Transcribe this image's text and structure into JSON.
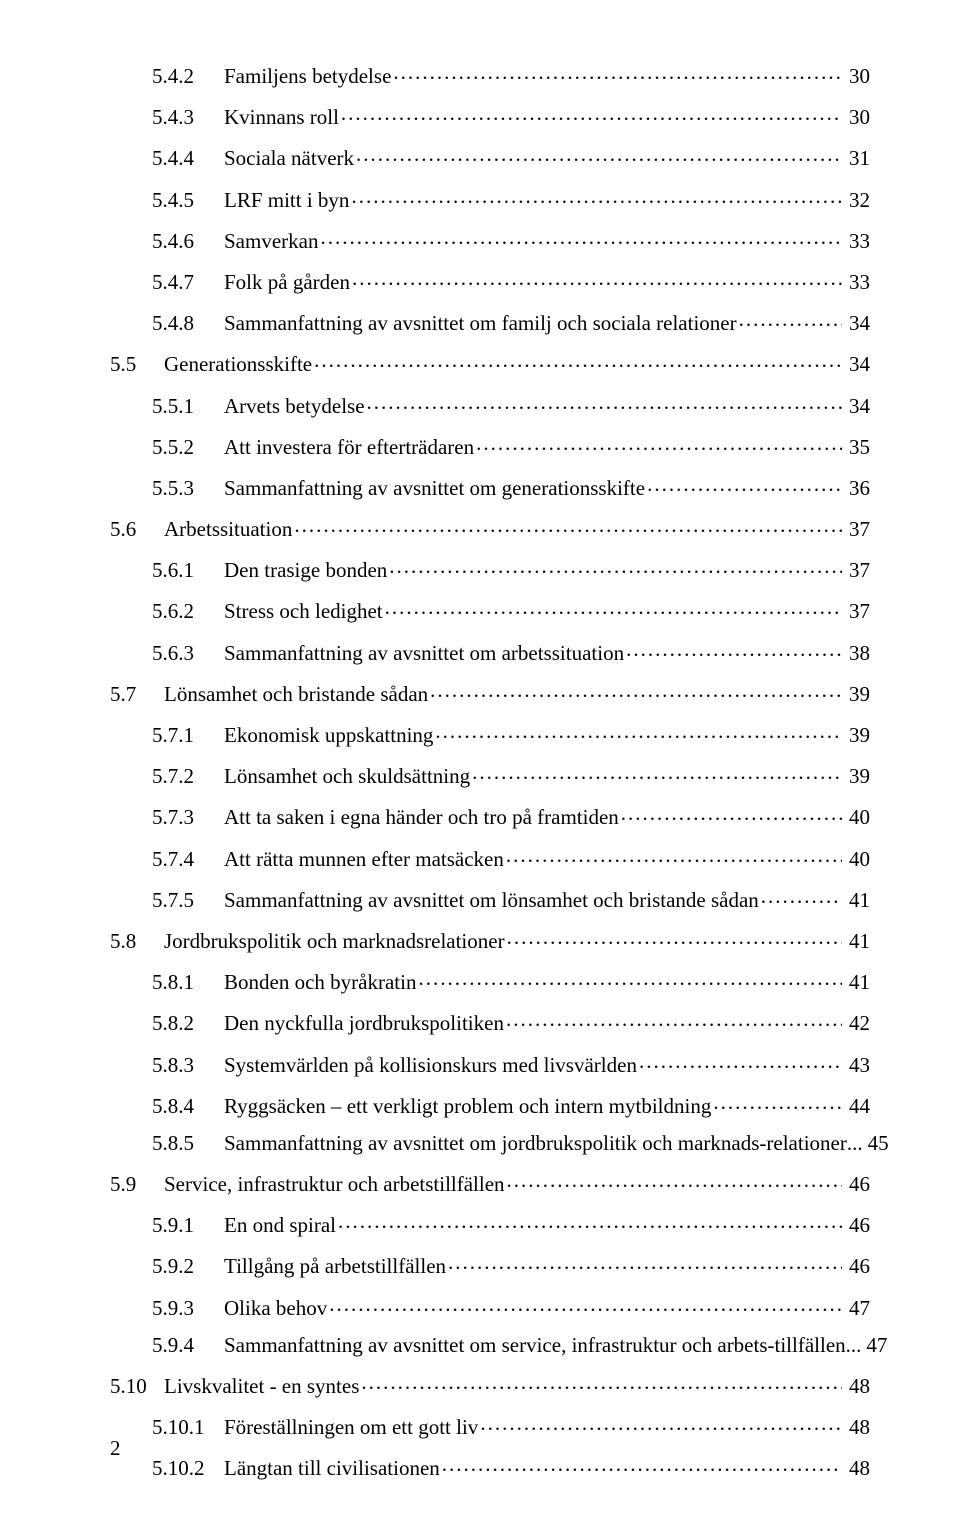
{
  "page_number": "2",
  "text_color": "#000000",
  "background_color": "#ffffff",
  "font_family": "Times New Roman",
  "font_size_pt": 16,
  "toc": [
    {
      "level": 2,
      "num": "5.4.2",
      "title": "Familjens betydelse",
      "suffix": "",
      "page": "30"
    },
    {
      "level": 2,
      "num": "5.4.3",
      "title": "Kvinnans roll",
      "suffix": "",
      "page": "30"
    },
    {
      "level": 2,
      "num": "5.4.4",
      "title": "Sociala nätverk",
      "suffix": "",
      "page": "31"
    },
    {
      "level": 2,
      "num": "5.4.5",
      "title": "LRF mitt i byn",
      "suffix": "",
      "page": "32"
    },
    {
      "level": 2,
      "num": "5.4.6",
      "title": "Samverkan",
      "suffix": "",
      "page": "33"
    },
    {
      "level": 2,
      "num": "5.4.7",
      "title": "Folk på gården",
      "suffix": "",
      "page": "33"
    },
    {
      "level": 2,
      "num": "5.4.8",
      "title": "Sammanfattning av avsnittet om familj och sociala relationer",
      "suffix": "",
      "page": "34"
    },
    {
      "level": 1,
      "num": "5.5",
      "title": "Generationsskifte",
      "suffix": "",
      "page": "34"
    },
    {
      "level": 2,
      "num": "5.5.1",
      "title": "Arvets betydelse",
      "suffix": "",
      "page": "34"
    },
    {
      "level": 2,
      "num": "5.5.2",
      "title": "Att investera för efterträdaren",
      "suffix": "",
      "page": "35"
    },
    {
      "level": 2,
      "num": "5.5.3",
      "title": "Sammanfattning av avsnittet om generationsskifte",
      "suffix": "",
      "page": "36"
    },
    {
      "level": 1,
      "num": "5.6",
      "title": "Arbetssituation",
      "suffix": "",
      "page": "37"
    },
    {
      "level": 2,
      "num": "5.6.1",
      "title": "Den trasige bonden",
      "suffix": "",
      "page": "37"
    },
    {
      "level": 2,
      "num": "5.6.2",
      "title": "Stress och ledighet",
      "suffix": "",
      "page": "37"
    },
    {
      "level": 2,
      "num": "5.6.3",
      "title": "Sammanfattning av avsnittet om arbetssituation",
      "suffix": "",
      "page": "38"
    },
    {
      "level": 1,
      "num": "5.7",
      "title": "Lönsamhet och bristande sådan",
      "suffix": "",
      "page": "39"
    },
    {
      "level": 2,
      "num": "5.7.1",
      "title": "Ekonomisk uppskattning",
      "suffix": "",
      "page": "39"
    },
    {
      "level": 2,
      "num": "5.7.2",
      "title": "Lönsamhet och skuldsättning",
      "suffix": "",
      "page": "39"
    },
    {
      "level": 2,
      "num": "5.7.3",
      "title": "Att ta saken i egna händer och tro på framtiden",
      "suffix": "",
      "page": "40"
    },
    {
      "level": 2,
      "num": "5.7.4",
      "title": "Att rätta munnen efter matsäcken",
      "suffix": "",
      "page": "40"
    },
    {
      "level": 2,
      "num": "5.7.5",
      "title": "Sammanfattning av avsnittet om lönsamhet och bristande sådan",
      "suffix": "",
      "page": "41"
    },
    {
      "level": 1,
      "num": "5.8",
      "title": "Jordbrukspolitik och marknadsrelationer",
      "suffix": "",
      "page": "41"
    },
    {
      "level": 2,
      "num": "5.8.1",
      "title": "Bonden och byråkratin",
      "suffix": "",
      "page": "41"
    },
    {
      "level": 2,
      "num": "5.8.2",
      "title": "Den nyckfulla jordbrukspolitiken",
      "suffix": "",
      "page": "42"
    },
    {
      "level": 2,
      "num": "5.8.3",
      "title": "Systemvärlden på kollisionskurs med livsvärlden",
      "suffix": "",
      "page": "43"
    },
    {
      "level": 2,
      "num": "5.8.4",
      "title": "Ryggsäcken – ett verkligt problem och intern mytbildning",
      "suffix": "",
      "page": "44"
    },
    {
      "level": 2,
      "num": "5.8.5",
      "title": "Sammanfattning av avsnittet om jordbrukspolitik och marknads-relationer",
      "suffix": "... ",
      "page": "45"
    },
    {
      "level": 1,
      "num": "5.9",
      "title": "Service, infrastruktur och arbetstillfällen",
      "suffix": "",
      "page": "46"
    },
    {
      "level": 2,
      "num": "5.9.1",
      "title": "En ond spiral",
      "suffix": "",
      "page": "46"
    },
    {
      "level": 2,
      "num": "5.9.2",
      "title": "Tillgång på arbetstillfällen",
      "suffix": "",
      "page": "46"
    },
    {
      "level": 2,
      "num": "5.9.3",
      "title": "Olika behov",
      "suffix": "",
      "page": "47"
    },
    {
      "level": 2,
      "num": "5.9.4",
      "title": "Sammanfattning av avsnittet om service, infrastruktur och arbets-tillfällen",
      "suffix": "... ",
      "page": "47"
    },
    {
      "level": 1,
      "num": "5.10",
      "title": "Livskvalitet - en syntes",
      "suffix": "",
      "page": "48"
    },
    {
      "level": 2,
      "num": "5.10.1",
      "title": "Föreställningen om ett gott liv",
      "suffix": "",
      "page": "48"
    },
    {
      "level": 2,
      "num": "5.10.2",
      "title": "Längtan till civilisationen",
      "suffix": "",
      "page": "48"
    }
  ]
}
